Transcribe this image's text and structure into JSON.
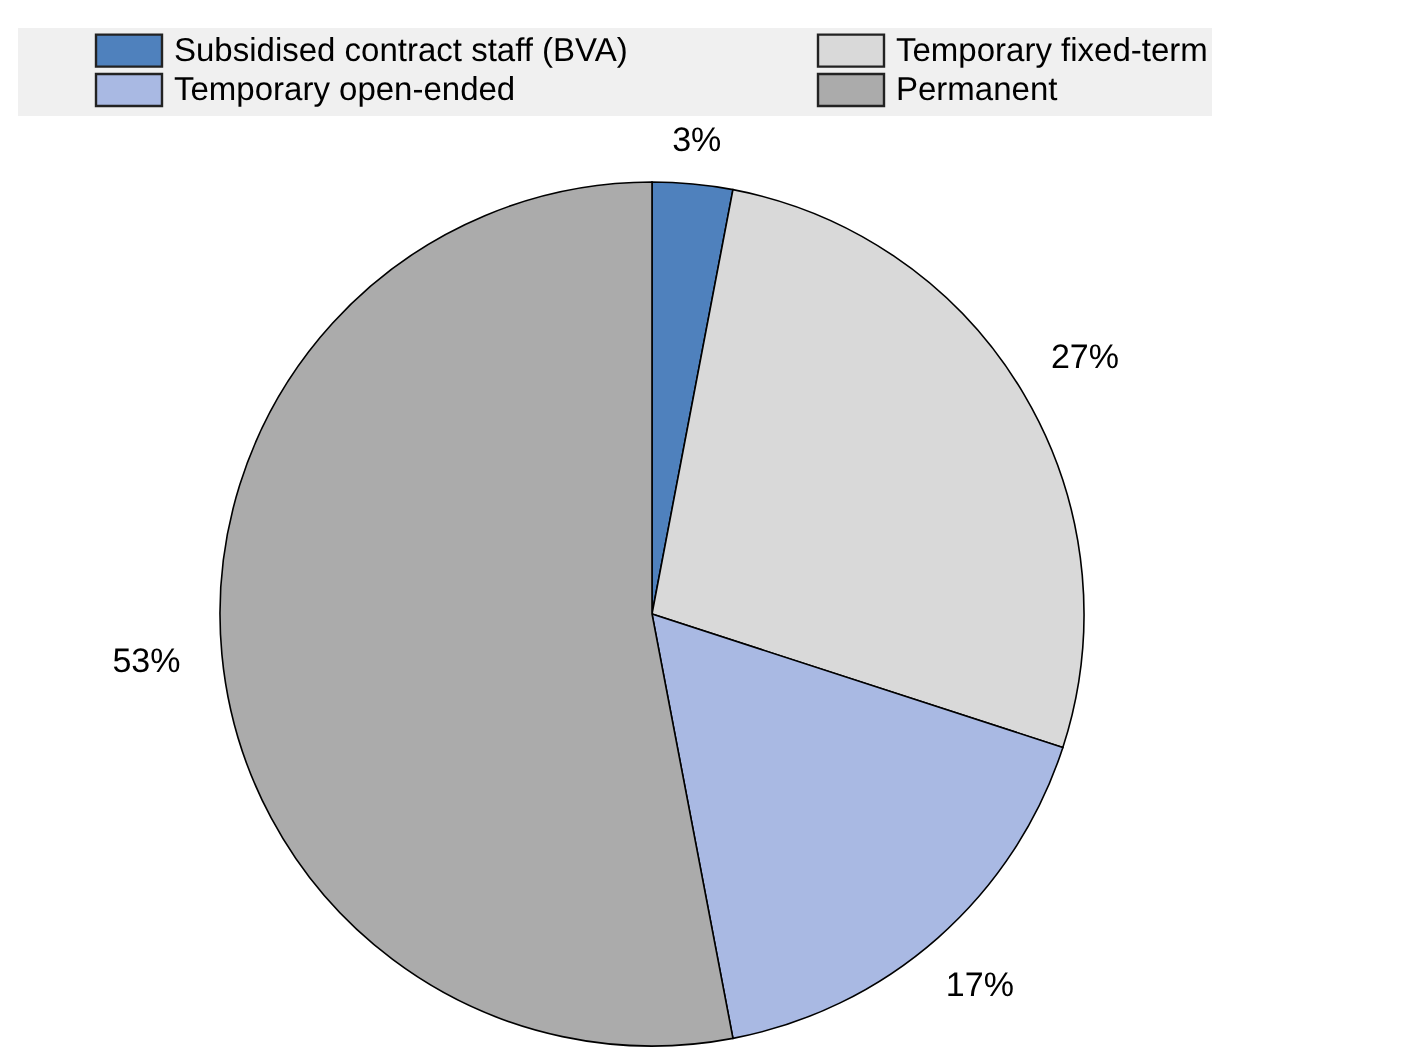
{
  "chart_data": {
    "type": "pie",
    "categories": [
      "Subsidised contract staff (BVA)",
      "Temporary fixed-term",
      "Temporary open-ended",
      "Permanent"
    ],
    "values": [
      3,
      27,
      17,
      53
    ],
    "colors": [
      "#4f81bd",
      "#d9d9d9",
      "#a9b9e3",
      "#ababab"
    ],
    "value_labels": [
      "3%",
      "27%",
      "17%",
      "53%"
    ],
    "legend": "top"
  }
}
